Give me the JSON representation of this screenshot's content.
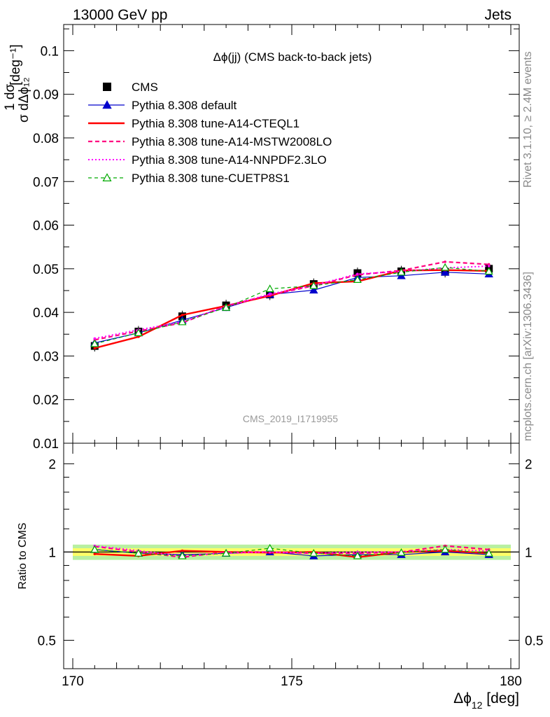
{
  "header": {
    "left": "13000 GeV pp",
    "right": "Jets"
  },
  "side_labels": {
    "rivet": "Rivet 3.1.10, ≥ 2.4M events",
    "mcplots": "mcplots.cern.ch [arXiv:1306.3436]"
  },
  "watermark": "CMS_2019_I1719955",
  "chart_data": [
    {
      "type": "line",
      "title": "Δϕ(jj) (CMS back-to-back jets)",
      "xlabel": "Δϕ₁₂ [deg]",
      "ylabel": "1/σ dσ/dΔϕ₁₂ [deg⁻¹]",
      "xlim": [
        170,
        180
      ],
      "ylim": [
        0.01,
        0.106
      ],
      "xticks": [
        170,
        175,
        180
      ],
      "yticks": [
        0.01,
        0.02,
        0.03,
        0.04,
        0.05,
        0.06,
        0.07,
        0.08,
        0.09,
        0.1
      ],
      "ytick_labels": [
        "0.01",
        "0.02",
        "0.03",
        "0.04",
        "0.05",
        "0.06",
        "0.07",
        "0.08",
        "0.09",
        "0.1"
      ],
      "legend": "top-left",
      "x": [
        170.5,
        171.5,
        172.5,
        173.5,
        174.5,
        175.5,
        176.5,
        177.5,
        178.5,
        179.5
      ],
      "series": [
        {
          "name": "CMS",
          "color": "#000000",
          "style": "data",
          "values": [
            0.0323,
            0.0356,
            0.0391,
            0.0416,
            0.0441,
            0.0465,
            0.049,
            0.0494,
            0.0493,
            0.05
          ]
        },
        {
          "name": "Pythia 8.308 default",
          "color": "#0000cc",
          "style": "solid-thin",
          "marker": "triangle",
          "values": [
            0.033,
            0.0353,
            0.0382,
            0.0411,
            0.0441,
            0.0451,
            0.048,
            0.0484,
            0.0492,
            0.0488
          ]
        },
        {
          "name": "Pythia 8.308 tune-A14-CTEQL1",
          "color": "#ff0000",
          "style": "solid-thick",
          "marker": "none",
          "values": [
            0.0318,
            0.0344,
            0.0394,
            0.0415,
            0.0438,
            0.0467,
            0.0471,
            0.0496,
            0.0497,
            0.0495
          ]
        },
        {
          "name": "Pythia 8.308 tune-A14-MSTW2008LO",
          "color": "#ff0080",
          "style": "dashed",
          "marker": "none",
          "values": [
            0.0337,
            0.0357,
            0.0376,
            0.0415,
            0.044,
            0.0461,
            0.0486,
            0.0496,
            0.0516,
            0.051
          ]
        },
        {
          "name": "Pythia 8.308 tune-A14-NNPDF2.3LO",
          "color": "#ff00ff",
          "style": "dotted",
          "marker": "none",
          "values": [
            0.034,
            0.036,
            0.0378,
            0.0413,
            0.0442,
            0.0462,
            0.0488,
            0.0494,
            0.0502,
            0.0506
          ]
        },
        {
          "name": "Pythia 8.308 tune-CUETP8S1",
          "color": "#00aa00",
          "style": "dashed-thin",
          "marker": "open-triangle",
          "values": [
            0.0328,
            0.0353,
            0.0378,
            0.0411,
            0.0454,
            0.0461,
            0.0475,
            0.0492,
            0.0503,
            0.0494
          ]
        }
      ]
    },
    {
      "type": "line",
      "title": "",
      "xlabel": "Δϕ₁₂ [deg]",
      "ylabel": "Ratio to CMS",
      "xlim": [
        170,
        180
      ],
      "ylim": [
        0.4,
        2.35
      ],
      "ylog": true,
      "yticks": [
        0.5,
        1,
        2
      ],
      "ytick_labels": [
        "0.5",
        "1",
        "2"
      ],
      "band_inner": 0.03,
      "band_outer": 0.06,
      "band_colors": {
        "inner": "#ffff66",
        "outer": "#b8f0a0"
      },
      "x": [
        170.5,
        171.5,
        172.5,
        173.5,
        174.5,
        175.5,
        176.5,
        177.5,
        178.5,
        179.5
      ],
      "series": [
        {
          "name": "Pythia 8.308 default",
          "color": "#0000cc",
          "style": "solid-thin",
          "marker": "triangle",
          "values": [
            1.02,
            0.99,
            0.98,
            0.99,
            1.0,
            0.97,
            0.98,
            0.98,
            1.0,
            0.98
          ]
        },
        {
          "name": "Pythia 8.308 tune-A14-CTEQL1",
          "color": "#ff0000",
          "style": "solid-thick",
          "marker": "none",
          "values": [
            0.985,
            0.97,
            1.01,
            1.0,
            0.995,
            1.0,
            0.96,
            1.0,
            1.01,
            0.99
          ]
        },
        {
          "name": "Pythia 8.308 tune-A14-MSTW2008LO",
          "color": "#ff0080",
          "style": "dashed",
          "marker": "none",
          "values": [
            1.045,
            1.0,
            0.96,
            1.0,
            1.0,
            0.99,
            0.99,
            1.0,
            1.05,
            1.02
          ]
        },
        {
          "name": "Pythia 8.308 tune-A14-NNPDF2.3LO",
          "color": "#ff00ff",
          "style": "dotted",
          "marker": "none",
          "values": [
            1.05,
            1.01,
            0.97,
            0.99,
            1.0,
            0.99,
            1.0,
            1.0,
            1.02,
            1.01
          ]
        },
        {
          "name": "Pythia 8.308 tune-CUETP8S1",
          "color": "#00aa00",
          "style": "dashed-thin",
          "marker": "open-triangle",
          "values": [
            1.02,
            0.99,
            0.97,
            0.99,
            1.03,
            0.99,
            0.97,
            0.995,
            1.02,
            0.99
          ]
        }
      ]
    }
  ]
}
